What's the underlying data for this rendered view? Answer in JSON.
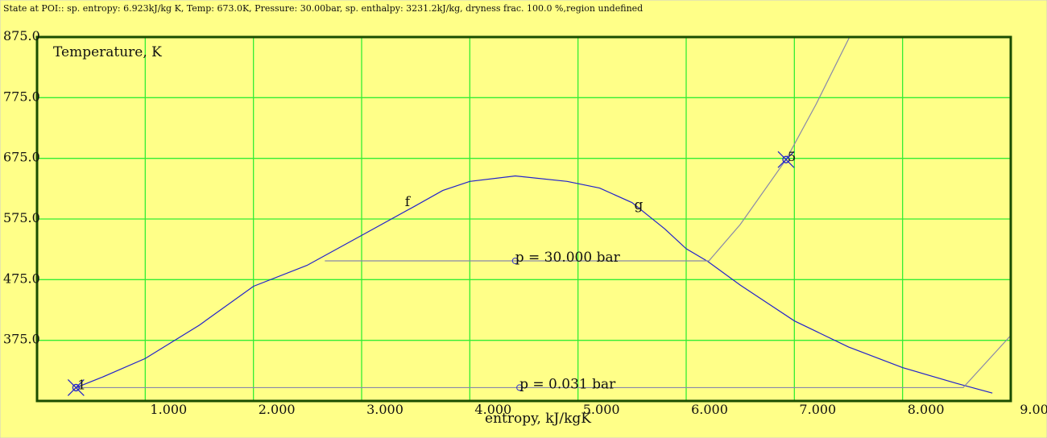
{
  "chart_data": {
    "type": "line",
    "title": "State at POI:: sp. entropy: 6.923kJ/kg K, Temp: 673.0K, Pressure: 30.00bar, sp. enthalpy: 3231.2kJ/kg, dryness frac. 100.0 %,region undefined",
    "ylabel": "Temperature, K",
    "xlabel": "entropy, kJ/kgK",
    "xlim": [
      0,
      9
    ],
    "ylim": [
      275,
      875
    ],
    "xticks": [
      {
        "value": 1,
        "label": "1.000"
      },
      {
        "value": 2,
        "label": "2.000"
      },
      {
        "value": 3,
        "label": "3.000"
      },
      {
        "value": 4,
        "label": "4.000"
      },
      {
        "value": 5,
        "label": "5.000"
      },
      {
        "value": 6,
        "label": "6.000"
      },
      {
        "value": 7,
        "label": "7.000"
      },
      {
        "value": 8,
        "label": "8.000"
      },
      {
        "value": 9,
        "label": "9.00"
      }
    ],
    "yticks": [
      {
        "value": 375,
        "label": "375.0"
      },
      {
        "value": 475,
        "label": "475.0"
      },
      {
        "value": 575,
        "label": "575.0"
      },
      {
        "value": 675,
        "label": "675.0"
      },
      {
        "value": 775,
        "label": "775.0"
      },
      {
        "value": 875,
        "label": "875.0"
      }
    ],
    "grid": true,
    "grid_color": "#33ee33",
    "series": [
      {
        "color": "#2222cc",
        "x": [
          0.36,
          0.6,
          1.0,
          1.5,
          2.0,
          2.5,
          3.0,
          3.5,
          3.75,
          4.0,
          4.42,
          4.9,
          5.2,
          5.5,
          5.8,
          6.0,
          6.2,
          6.5,
          7.0,
          7.5,
          8.0,
          8.5,
          8.83
        ],
        "values": [
          297,
          314,
          345,
          400,
          464,
          499,
          548,
          597,
          622,
          637,
          646,
          637,
          626,
          602,
          559,
          526,
          505,
          466,
          407,
          364,
          330,
          304,
          288
        ]
      },
      {
        "color": "#8888aa",
        "x": [
          2.66,
          6.21,
          6.5,
          6.923,
          7.2,
          7.51
        ],
        "values": [
          506,
          506,
          566,
          673,
          764,
          875
        ]
      },
      {
        "color": "#8888aa",
        "x": [
          0.36,
          8.56,
          9.0
        ],
        "values": [
          297,
          297,
          383
        ]
      }
    ],
    "annotations": [
      {
        "text": "f",
        "x": 3.4,
        "y": 596
      },
      {
        "text": "g",
        "x": 5.52,
        "y": 591
      }
    ],
    "isobar_labels": [
      {
        "text": "p = 30.000 bar",
        "x": 4.42,
        "y": 506
      },
      {
        "text": "p = 0.031 bar",
        "x": 4.46,
        "y": 297
      }
    ],
    "state_points": [
      {
        "label": "1",
        "x": 0.36,
        "y": 297
      },
      {
        "label": "5",
        "x": 6.923,
        "y": 673
      }
    ]
  }
}
